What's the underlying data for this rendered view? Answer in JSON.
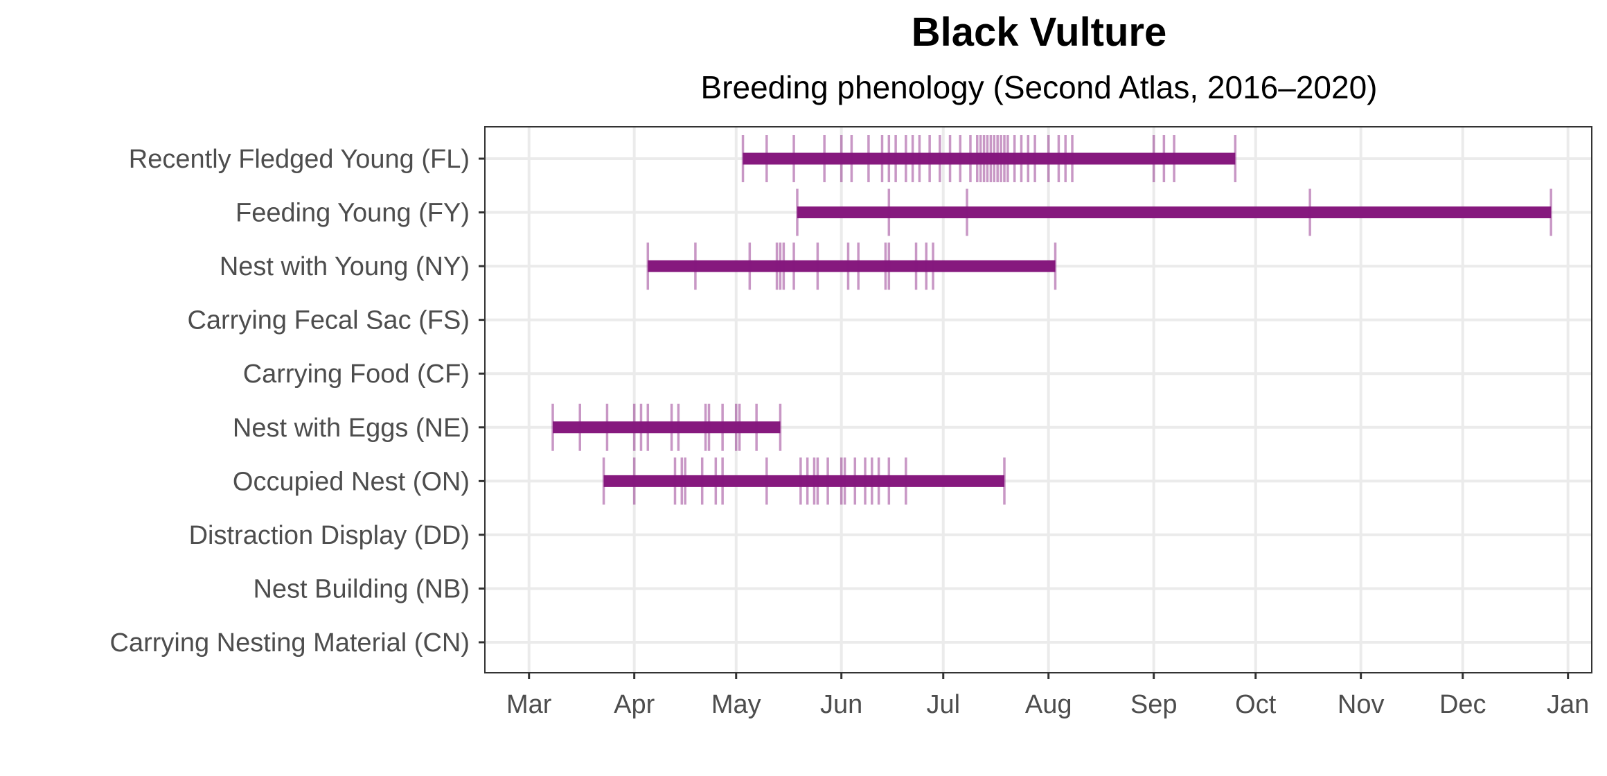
{
  "chart_data": {
    "type": "timeline",
    "title": "Black Vulture",
    "subtitle": "Breeding phenology (Second Atlas, 2016–2020)",
    "x_ticks": [
      "Mar",
      "Apr",
      "May",
      "Jun",
      "Jul",
      "Aug",
      "Sep",
      "Oct",
      "Nov",
      "Dec",
      "Jan"
    ],
    "x_tick_dates": [
      "03-01",
      "04-01",
      "05-01",
      "06-01",
      "07-01",
      "08-01",
      "09-01",
      "10-01",
      "11-01",
      "12-01",
      "01-01"
    ],
    "xlim": [
      "02-16",
      "01-08"
    ],
    "grid": true,
    "bar_color": "#86197e",
    "categories": [
      {
        "label": "Recently Fledged Young (FL)",
        "range": [
          "05-03",
          "09-25"
        ],
        "observations": [
          "05-03",
          "05-10",
          "05-18",
          "05-27",
          "06-01",
          "06-04",
          "06-09",
          "06-13",
          "06-15",
          "06-17",
          "06-20",
          "06-22",
          "06-24",
          "06-27",
          "06-30",
          "07-03",
          "07-06",
          "07-09",
          "07-11",
          "07-12",
          "07-13",
          "07-14",
          "07-15",
          "07-16",
          "07-17",
          "07-18",
          "07-19",
          "07-20",
          "07-22",
          "07-24",
          "07-26",
          "07-28",
          "08-01",
          "08-04",
          "08-06",
          "08-08",
          "09-01",
          "09-04",
          "09-07",
          "09-25"
        ]
      },
      {
        "label": "Feeding Young (FY)",
        "range": [
          "05-19",
          "12-27"
        ],
        "observations": [
          "05-19",
          "06-15",
          "07-08",
          "10-17",
          "12-27"
        ]
      },
      {
        "label": "Nest with Young (NY)",
        "range": [
          "04-05",
          "08-03"
        ],
        "observations": [
          "04-05",
          "04-19",
          "05-05",
          "05-13",
          "05-14",
          "05-15",
          "05-18",
          "05-25",
          "06-03",
          "06-06",
          "06-14",
          "06-15",
          "06-23",
          "06-26",
          "06-28",
          "08-03"
        ]
      },
      {
        "label": "Carrying Fecal Sac (FS)",
        "range": null,
        "observations": []
      },
      {
        "label": "Carrying Food (CF)",
        "range": null,
        "observations": []
      },
      {
        "label": "Nest with Eggs (NE)",
        "range": [
          "03-08",
          "05-14"
        ],
        "observations": [
          "03-08",
          "03-16",
          "03-24",
          "04-01",
          "04-03",
          "04-05",
          "04-12",
          "04-14",
          "04-22",
          "04-23",
          "04-27",
          "05-01",
          "05-02",
          "05-07",
          "05-14"
        ]
      },
      {
        "label": "Occupied Nest (ON)",
        "range": [
          "03-23",
          "07-19"
        ],
        "observations": [
          "03-23",
          "04-01",
          "04-13",
          "04-15",
          "04-16",
          "04-21",
          "04-25",
          "04-27",
          "05-10",
          "05-20",
          "05-22",
          "05-24",
          "05-25",
          "05-28",
          "06-01",
          "06-02",
          "06-05",
          "06-08",
          "06-10",
          "06-12",
          "06-15",
          "06-20",
          "07-19"
        ]
      },
      {
        "label": "Distraction Display (DD)",
        "range": null,
        "observations": []
      },
      {
        "label": "Nest Building (NB)",
        "range": null,
        "observations": []
      },
      {
        "label": "Carrying Nesting Material (CN)",
        "range": null,
        "observations": []
      }
    ]
  }
}
